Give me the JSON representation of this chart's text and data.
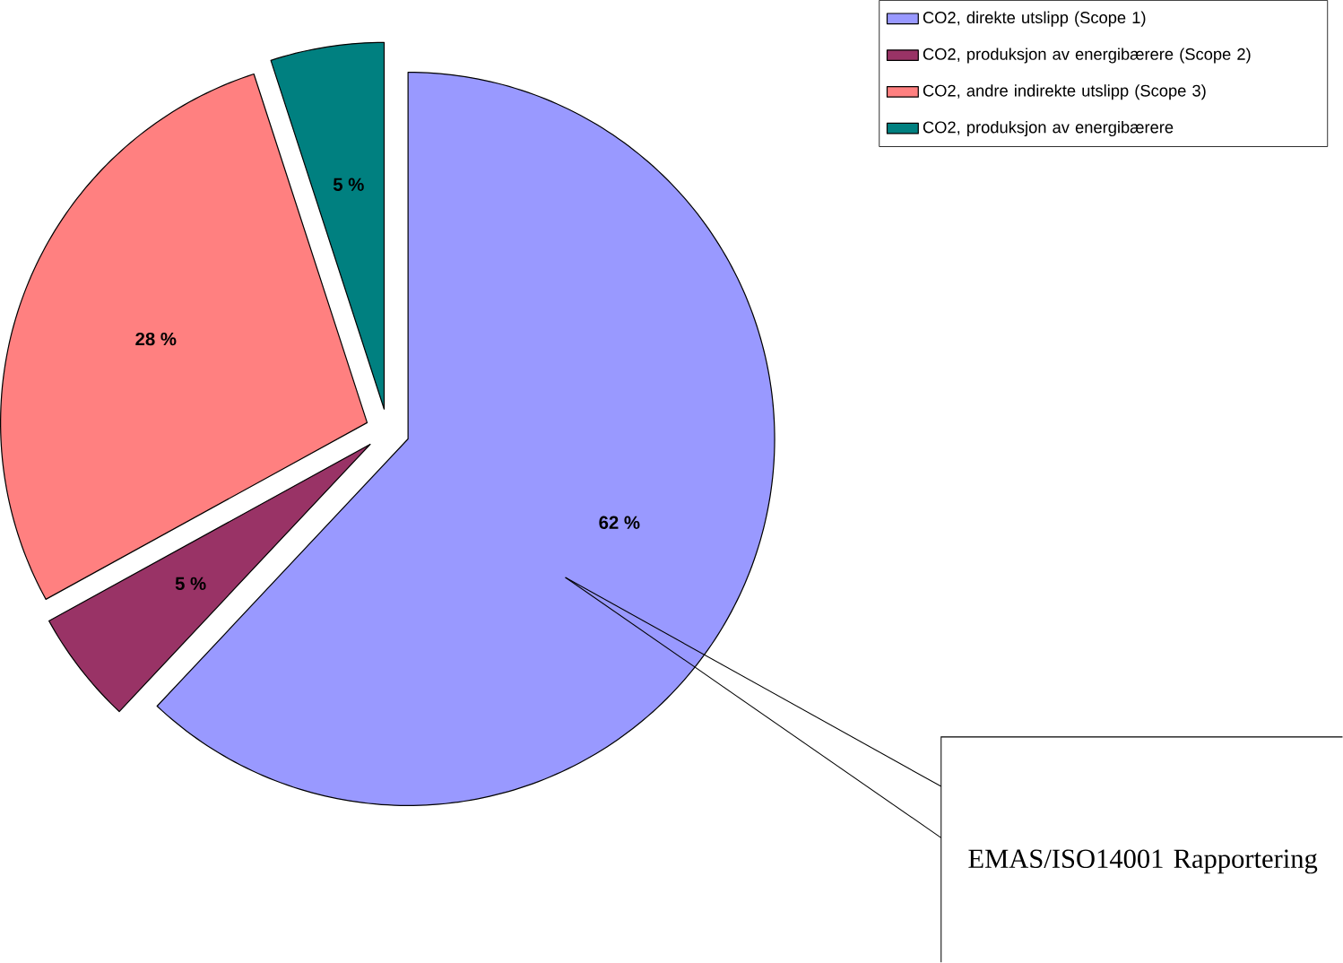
{
  "chart_data": {
    "type": "pie",
    "categories": [
      "CO2, direkte utslipp (Scope 1)",
      "CO2, produksjon av energibærere (Scope 2)",
      "CO2, andre indirekte utslipp (Scope 3)",
      "CO2, produksjon av energibærere"
    ],
    "values": [
      62,
      5,
      28,
      5
    ],
    "value_labels": [
      "62 %",
      "5 %",
      "28 %",
      "5 %"
    ],
    "colors": [
      "#9999ff",
      "#993366",
      "#ff8080",
      "#008080"
    ],
    "legend": "top right",
    "annotations": [
      "EMAS/ISO14001 Rapportering"
    ]
  }
}
